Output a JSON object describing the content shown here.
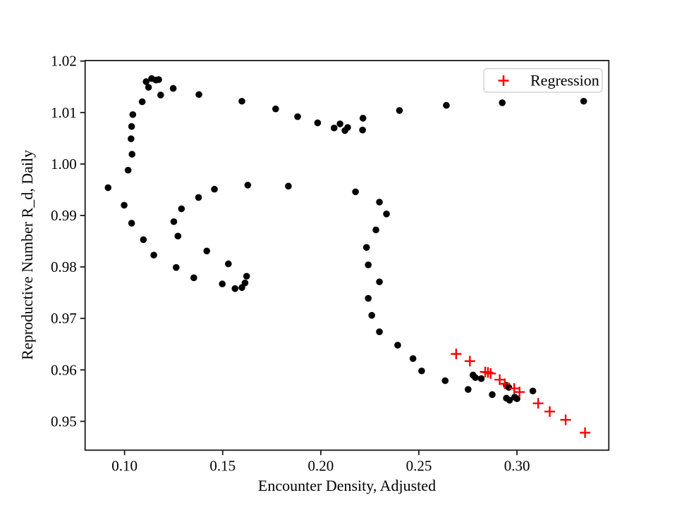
{
  "figure": {
    "background": "#ffffff",
    "title": ""
  },
  "chart_data": {
    "type": "scatter",
    "title": "",
    "xlabel": "Encounter Density, Adjusted",
    "ylabel": "Reproductive Number R_d, Daily",
    "xlim": [
      0.0799,
      0.3468
    ],
    "ylim": [
      0.9444,
      1.0201
    ],
    "grid": false,
    "x_ticks": [
      "0.10",
      "0.15",
      "0.20",
      "0.25",
      "0.30"
    ],
    "x_tick_values": [
      0.1,
      0.15,
      0.2,
      0.25,
      0.3
    ],
    "y_ticks": [
      "0.95",
      "0.96",
      "0.97",
      "0.98",
      "0.99",
      "1.00",
      "1.01",
      "1.02"
    ],
    "y_tick_values": [
      0.95,
      0.96,
      0.97,
      0.98,
      0.99,
      1.0,
      1.01,
      1.02
    ],
    "legend": {
      "position": "upper right",
      "entries": [
        {
          "label": "Regression",
          "marker": "plus",
          "color": "#ff0000"
        }
      ]
    },
    "series": [
      {
        "name": "trajectory",
        "marker": "circle",
        "color": "#000000",
        "in_legend": false,
        "points": [
          [
            0.334,
            1.0122
          ],
          [
            0.2925,
            1.0119
          ],
          [
            0.264,
            1.0114
          ],
          [
            0.2401,
            1.0104
          ],
          [
            0.2215,
            1.0089
          ],
          [
            0.2213,
            1.0066
          ],
          [
            0.2137,
            1.0071
          ],
          [
            0.2123,
            1.0065
          ],
          [
            0.2098,
            1.0078
          ],
          [
            0.2068,
            1.007
          ],
          [
            0.1984,
            1.008
          ],
          [
            0.1882,
            1.0092
          ],
          [
            0.177,
            1.0107
          ],
          [
            0.1598,
            1.0122
          ],
          [
            0.1379,
            1.0135
          ],
          [
            0.1248,
            1.0147
          ],
          [
            0.1184,
            1.0134
          ],
          [
            0.1174,
            1.0164
          ],
          [
            0.116,
            1.0163
          ],
          [
            0.1138,
            1.0166
          ],
          [
            0.1122,
            1.0149
          ],
          [
            0.111,
            1.016
          ],
          [
            0.109,
            1.0121
          ],
          [
            0.1042,
            1.0096
          ],
          [
            0.1036,
            1.0073
          ],
          [
            0.1033,
            1.0049
          ],
          [
            0.1038,
            1.0019
          ],
          [
            0.1018,
            0.9988
          ],
          [
            0.0916,
            0.9954
          ],
          [
            0.0998,
            0.992
          ],
          [
            0.1036,
            0.9885
          ],
          [
            0.1096,
            0.9853
          ],
          [
            0.1149,
            0.9823
          ],
          [
            0.1263,
            0.9799
          ],
          [
            0.1353,
            0.9779
          ],
          [
            0.1498,
            0.9767
          ],
          [
            0.1563,
            0.9758
          ],
          [
            0.1598,
            0.976
          ],
          [
            0.1614,
            0.9769
          ],
          [
            0.1622,
            0.9782
          ],
          [
            0.1529,
            0.9806
          ],
          [
            0.1419,
            0.9831
          ],
          [
            0.1272,
            0.986
          ],
          [
            0.1251,
            0.9888
          ],
          [
            0.129,
            0.9913
          ],
          [
            0.1377,
            0.9935
          ],
          [
            0.1458,
            0.9951
          ],
          [
            0.1628,
            0.9959
          ],
          [
            0.1835,
            0.9957
          ],
          [
            0.2177,
            0.9946
          ],
          [
            0.2299,
            0.9926
          ],
          [
            0.2335,
            0.9903
          ],
          [
            0.2281,
            0.9872
          ],
          [
            0.2233,
            0.9838
          ],
          [
            0.2242,
            0.9804
          ],
          [
            0.2299,
            0.9771
          ],
          [
            0.2242,
            0.9739
          ],
          [
            0.226,
            0.9706
          ],
          [
            0.2299,
            0.9674
          ],
          [
            0.2392,
            0.9648
          ],
          [
            0.247,
            0.9622
          ],
          [
            0.2514,
            0.9598
          ],
          [
            0.2634,
            0.9579
          ],
          [
            0.2751,
            0.9562
          ],
          [
            0.2776,
            0.959
          ],
          [
            0.2788,
            0.9585
          ],
          [
            0.2818,
            0.9583
          ],
          [
            0.2874,
            0.9552
          ],
          [
            0.2946,
            0.957
          ],
          [
            0.2958,
            0.9566
          ],
          [
            0.2946,
            0.9545
          ],
          [
            0.2962,
            0.9541
          ],
          [
            0.2988,
            0.9547
          ],
          [
            0.3,
            0.9544
          ],
          [
            0.3081,
            0.9559
          ]
        ]
      },
      {
        "name": "Regression",
        "marker": "plus",
        "color": "#ff0000",
        "in_legend": true,
        "points": [
          [
            0.269,
            0.9631
          ],
          [
            0.276,
            0.9617
          ],
          [
            0.2838,
            0.9596
          ],
          [
            0.2852,
            0.9595
          ],
          [
            0.2866,
            0.9593
          ],
          [
            0.2912,
            0.9581
          ],
          [
            0.2938,
            0.9573
          ],
          [
            0.2986,
            0.9564
          ],
          [
            0.3013,
            0.9557
          ],
          [
            0.3108,
            0.9535
          ],
          [
            0.3167,
            0.9519
          ],
          [
            0.3248,
            0.9503
          ],
          [
            0.3347,
            0.9478
          ]
        ]
      }
    ]
  }
}
